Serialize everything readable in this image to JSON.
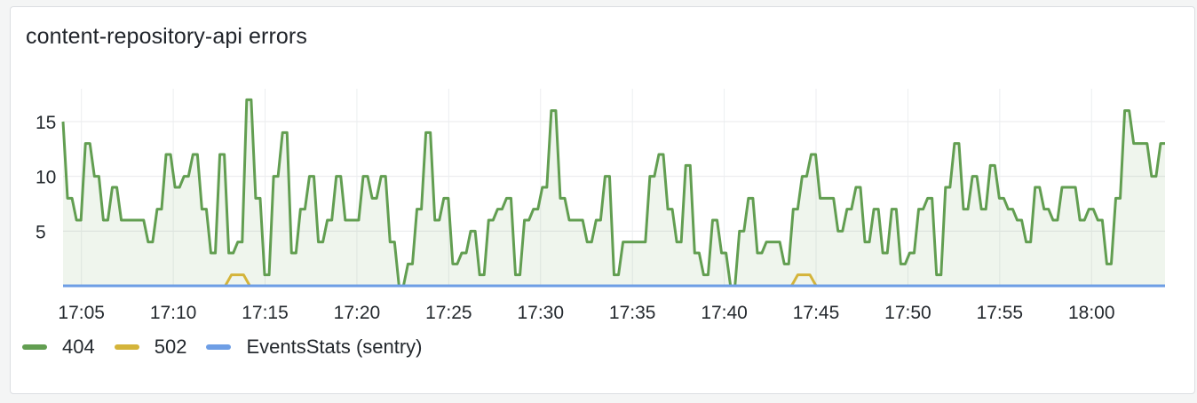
{
  "panel": {
    "title": "content-repository-api errors"
  },
  "chart_data": {
    "type": "line",
    "title": "content-repository-api errors",
    "x_start": "17:04",
    "x_end": "18:04",
    "x_ticks": [
      "17:05",
      "17:10",
      "17:15",
      "17:20",
      "17:25",
      "17:30",
      "17:35",
      "17:40",
      "17:45",
      "17:50",
      "17:55",
      "18:00"
    ],
    "y_ticks": [
      5,
      10,
      15
    ],
    "ylim": [
      0,
      18
    ],
    "grid": true,
    "legend_position": "bottom-left",
    "series": [
      {
        "name": "404",
        "color": "#629e51",
        "fill": true,
        "values": [
          15,
          8,
          8,
          6,
          6,
          13,
          13,
          10,
          10,
          6,
          6,
          9,
          9,
          6,
          6,
          6,
          6,
          6,
          6,
          4,
          4,
          7,
          7,
          12,
          12,
          9,
          9,
          10,
          10,
          12,
          12,
          7,
          7,
          3,
          3,
          12,
          12,
          3,
          3,
          4,
          4,
          17,
          17,
          8,
          8,
          1,
          1,
          10,
          10,
          14,
          14,
          3,
          3,
          7,
          7,
          10,
          10,
          4,
          4,
          6,
          6,
          10,
          10,
          6,
          6,
          6,
          6,
          10,
          10,
          8,
          8,
          10,
          10,
          4,
          4,
          0,
          0,
          2,
          2,
          7,
          7,
          14,
          14,
          6,
          6,
          8,
          8,
          2,
          2,
          3,
          3,
          5,
          5,
          1,
          1,
          6,
          6,
          7,
          7,
          8,
          8,
          1,
          1,
          6,
          6,
          7,
          7,
          9,
          9,
          16,
          16,
          8,
          8,
          6,
          6,
          6,
          6,
          4,
          4,
          6,
          6,
          10,
          10,
          1,
          1,
          4,
          4,
          4,
          4,
          4,
          4,
          10,
          10,
          12,
          12,
          7,
          7,
          4,
          4,
          11,
          11,
          3,
          3,
          1,
          1,
          6,
          6,
          3,
          3,
          0,
          0,
          5,
          5,
          8,
          8,
          3,
          3,
          4,
          4,
          4,
          4,
          2,
          2,
          7,
          7,
          10,
          10,
          12,
          12,
          8,
          8,
          8,
          8,
          5,
          5,
          7,
          7,
          9,
          9,
          4,
          4,
          7,
          7,
          3,
          3,
          7,
          7,
          2,
          2,
          3,
          3,
          7,
          7,
          8,
          8,
          1,
          1,
          9,
          9,
          13,
          13,
          7,
          7,
          10,
          10,
          7,
          7,
          11,
          11,
          8,
          8,
          7,
          7,
          6,
          6,
          4,
          4,
          9,
          9,
          7,
          7,
          6,
          6,
          9,
          9,
          9,
          9,
          6,
          6,
          7,
          7,
          6,
          6,
          2,
          2,
          8,
          8,
          16,
          16,
          13,
          13,
          13,
          13,
          10,
          10,
          13,
          13
        ]
      },
      {
        "name": "502",
        "color": "#d4b43a",
        "fill": false,
        "points": [
          [
            "17:04",
            0
          ],
          [
            "17:12:50",
            0
          ],
          [
            "17:13:10",
            1
          ],
          [
            "17:13:50",
            1
          ],
          [
            "17:14:10",
            0
          ],
          [
            "17:43:40",
            0
          ],
          [
            "17:44:00",
            1
          ],
          [
            "17:44:40",
            1
          ],
          [
            "17:45:00",
            0
          ],
          [
            "18:04",
            0
          ]
        ]
      },
      {
        "name": "EventsStats (sentry)",
        "color": "#6e9ee5",
        "fill": false,
        "constant": 0
      }
    ]
  }
}
